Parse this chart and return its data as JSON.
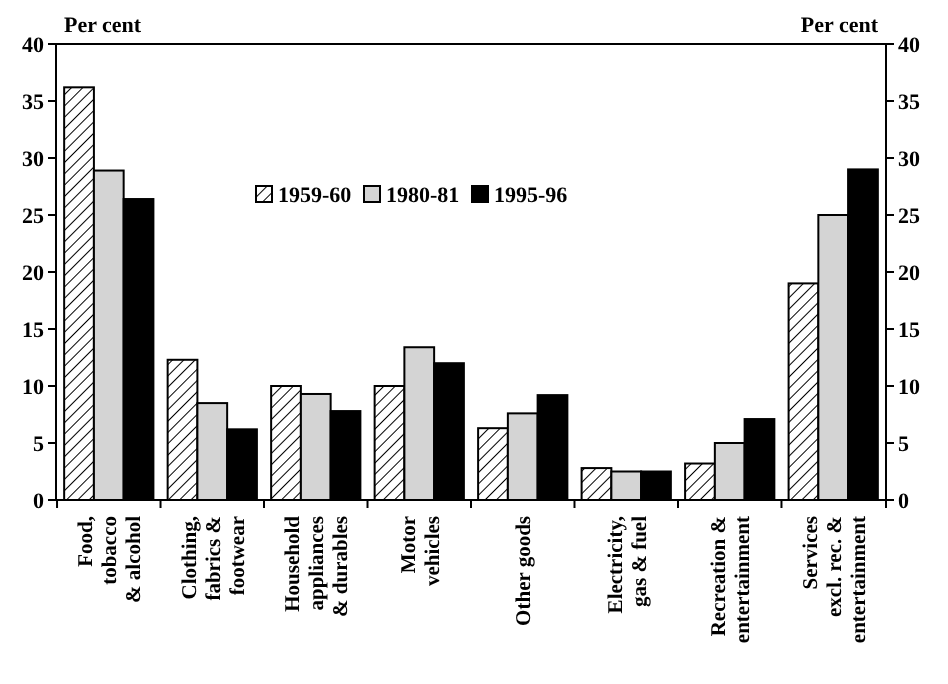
{
  "chart_data": {
    "type": "bar",
    "ylabel": "Per cent",
    "y2label": "Per cent",
    "categories": [
      "Food,\ntobacco\n& alcohol",
      "Clothing,\nfabrics &\nfootwear",
      "Household\nappliances\n& durables",
      "Motor\nvehicles",
      "Other goods",
      "Electricity,\ngas & fuel",
      "Recreation &\nentertainment",
      "Services\nexcl. rec. &\nentertainment"
    ],
    "series": [
      {
        "name": "1959-60",
        "color": "#ffffff",
        "values": [
          36.2,
          12.3,
          10.0,
          10.0,
          6.3,
          2.8,
          3.2,
          19.0
        ]
      },
      {
        "name": "1980-81",
        "color": "#d4d4d4",
        "values": [
          28.9,
          8.5,
          9.3,
          13.4,
          7.6,
          2.5,
          5.0,
          25.0
        ]
      },
      {
        "name": "1995-96",
        "color": "#000000",
        "values": [
          26.4,
          6.2,
          7.8,
          12.0,
          9.2,
          2.5,
          7.1,
          29.0
        ]
      }
    ],
    "ylim": [
      0,
      40
    ],
    "yticks": [
      0,
      5,
      10,
      15,
      20,
      25,
      30,
      35,
      40
    ],
    "y2lim": [
      0,
      40
    ],
    "y2ticks": [
      0,
      5,
      10,
      15,
      20,
      25,
      30,
      35,
      40
    ],
    "legend": "top",
    "grid": false
  }
}
